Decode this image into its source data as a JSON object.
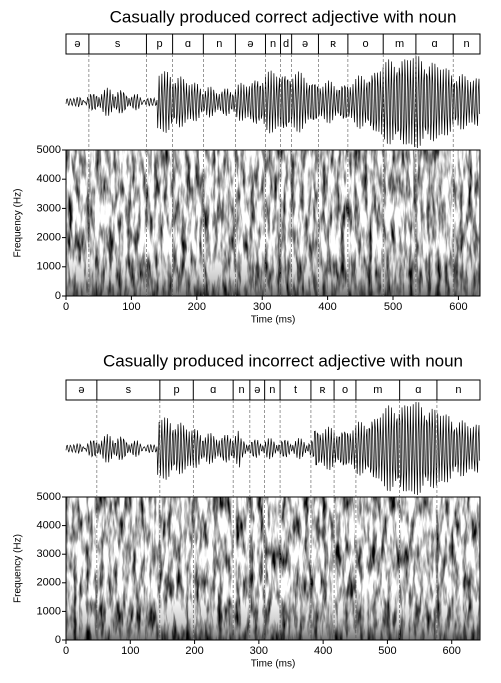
{
  "chart_data": [
    {
      "type": "spectrogram",
      "title": "Casually produced correct adjective with noun",
      "segments": [
        "ə",
        "s",
        "p",
        "ɑ",
        "n",
        "ə",
        "n",
        "d",
        "ə",
        "ʀ",
        "o",
        "m",
        "ɑ",
        "n"
      ],
      "boundaries": [
        0,
        35,
        123,
        163,
        210,
        259,
        305,
        328,
        345,
        386,
        431,
        485,
        535,
        592,
        633
      ],
      "xlim": [
        0,
        633
      ],
      "xticks": [
        0,
        100,
        200,
        300,
        400,
        500,
        600
      ],
      "ylim": [
        0,
        5000
      ],
      "yticks": [
        0,
        1000,
        2000,
        3000,
        4000,
        5000
      ],
      "x_label": "Time (ms)",
      "y_label": "Frequency (Hz)"
    },
    {
      "type": "spectrogram",
      "title": "Casually produced incorrect adjective with noun",
      "segments": [
        "ə",
        "s",
        "p",
        "ɑ",
        "n",
        "ə",
        "n",
        "t",
        "ʀ",
        "o",
        "m",
        "ɑ",
        "n"
      ],
      "boundaries": [
        0,
        48,
        146,
        198,
        260,
        286,
        309,
        333,
        381,
        417,
        451,
        519,
        577,
        644
      ],
      "xlim": [
        0,
        644
      ],
      "xticks": [
        0,
        100,
        200,
        300,
        400,
        500,
        600
      ],
      "ylim": [
        0,
        5000
      ],
      "yticks": [
        0,
        1000,
        2000,
        3000,
        4000,
        5000
      ],
      "x_label": "Time (ms)",
      "y_label": "Frequency (Hz)"
    }
  ]
}
